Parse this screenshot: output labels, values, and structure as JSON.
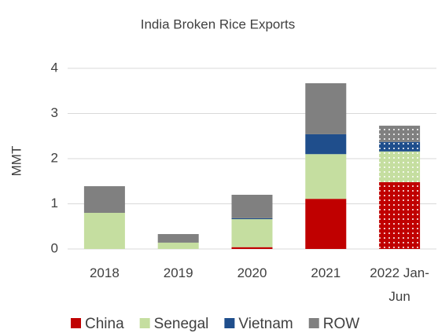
{
  "chart_data": {
    "type": "stacked_bar",
    "title": "India Broken Rice Exports",
    "y_label": "MMT",
    "categories": [
      "2018",
      "2019",
      "2020",
      "2021",
      "2022 Jan-Jun"
    ],
    "series": [
      {
        "name": "China",
        "color": "#c00000",
        "values": [
          0,
          0,
          0.04,
          1.11,
          1.48
        ]
      },
      {
        "name": "Senegal",
        "color": "#c5dea0",
        "values": [
          0.8,
          0.14,
          0.62,
          0.99,
          0.68
        ]
      },
      {
        "name": "Vietnam",
        "color": "#1f4e8c",
        "values": [
          0,
          0,
          0.02,
          0.44,
          0.21
        ]
      },
      {
        "name": "ROW",
        "color": "#808080",
        "values": [
          0.59,
          0.19,
          0.52,
          1.13,
          0.36
        ]
      }
    ],
    "ylim": [
      0,
      4
    ],
    "yticks": [
      0,
      1,
      2,
      3,
      4
    ],
    "grid": true,
    "legend": "bottom"
  }
}
